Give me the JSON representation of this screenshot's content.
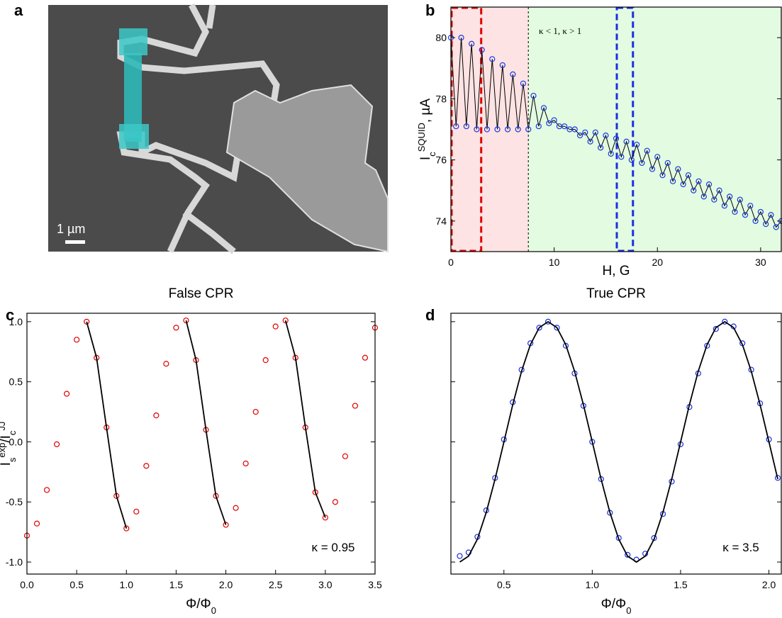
{
  "image": {
    "panel_label": "a",
    "scale_bar": "1 µm"
  },
  "chart_data": [
    {
      "type": "line",
      "panel_label": "b",
      "xlabel": [
        {
          "text": "H, G"
        }
      ],
      "ylabel": [
        {
          "text": "I"
        },
        {
          "text": "c",
          "shift": "sub"
        },
        {
          "text": "SQUID",
          "shift": "super"
        },
        {
          "text": ", µA"
        }
      ],
      "annotation": "κ < 1, κ > 1",
      "xlim": [
        0,
        32
      ],
      "ylim": [
        73,
        81
      ],
      "xticks": [
        0,
        10,
        20,
        30
      ],
      "yticks": [
        74,
        76,
        78,
        80
      ],
      "regions": [
        {
          "x": [
            0,
            7.5
          ],
          "color": "#fde3e3"
        },
        {
          "x": [
            7.5,
            32
          ],
          "color": "#e3fbe1"
        }
      ],
      "divider": 7.5,
      "highlights": [
        {
          "x": [
            0,
            3
          ],
          "color": "#e00000"
        },
        {
          "x": [
            16,
            17.7
          ],
          "color": "#1a2fe0"
        }
      ],
      "x": [
        0,
        0.5,
        1,
        1.5,
        2,
        2.5,
        3,
        3.5,
        4,
        4.5,
        5,
        5.5,
        6,
        6.5,
        7,
        7.5,
        8,
        8.5,
        9,
        9.5,
        10,
        10.5,
        11,
        11.5,
        12,
        12.5,
        13,
        13.5,
        14,
        14.5,
        15,
        15.5,
        16,
        16.5,
        17,
        17.5,
        18,
        18.5,
        19,
        19.5,
        20,
        20.5,
        21,
        21.5,
        22,
        22.5,
        23,
        23.5,
        24,
        24.5,
        25,
        25.5,
        26,
        26.5,
        27,
        27.5,
        28,
        28.5,
        29,
        29.5,
        30,
        30.5,
        31,
        31.5,
        32
      ],
      "series": [
        {
          "color": "#1a3be0",
          "marker": "circle",
          "line_color": "#000000",
          "values": [
            80.0,
            77.1,
            80.0,
            77.1,
            79.8,
            77.0,
            79.6,
            77.0,
            79.3,
            77.0,
            79.1,
            77.0,
            78.8,
            77.0,
            78.5,
            77.0,
            78.1,
            77.1,
            77.7,
            77.2,
            77.3,
            77.1,
            77.1,
            77.0,
            77.0,
            76.8,
            76.9,
            76.6,
            76.9,
            76.4,
            76.8,
            76.2,
            76.7,
            76.1,
            76.6,
            76.0,
            76.5,
            75.9,
            76.3,
            75.7,
            76.1,
            75.5,
            75.9,
            75.3,
            75.7,
            75.2,
            75.5,
            75.0,
            75.3,
            74.8,
            75.2,
            74.7,
            75.0,
            74.5,
            74.8,
            74.3,
            74.7,
            74.2,
            74.5,
            74.0,
            74.3,
            73.9,
            74.2,
            73.8,
            74.0
          ]
        }
      ]
    },
    {
      "type": "scatter",
      "panel_label": "c",
      "title": "False CPR",
      "xlabel": [
        {
          "text": "Φ/Φ"
        },
        {
          "text": "0",
          "shift": "sub"
        }
      ],
      "ylabel": [
        {
          "text": "I"
        },
        {
          "text": "s",
          "shift": "sub"
        },
        {
          "text": "exp",
          "shift": "super"
        },
        {
          "text": "/I"
        },
        {
          "text": "c",
          "shift": "sub"
        },
        {
          "text": "JJ",
          "shift": "super"
        }
      ],
      "annotation": "κ = 0.95",
      "xlim": [
        0,
        3.5
      ],
      "ylim": [
        -1.1,
        1.07
      ],
      "xticks": [
        {
          "value": 0,
          "label": "0.0"
        },
        0.5,
        {
          "value": 1,
          "label": "1.0"
        },
        1.5,
        {
          "value": 2,
          "label": "2.0"
        },
        2.5,
        {
          "value": 3,
          "label": "3.0"
        },
        3.5
      ],
      "yticks": [
        {
          "value": -1,
          "label": "-1.0"
        },
        -0.5,
        {
          "value": 0,
          "label": "0.0"
        },
        0.5,
        {
          "value": 1,
          "label": "1.0"
        }
      ],
      "x": [
        0,
        0.1,
        0.2,
        0.3,
        0.4,
        0.5,
        0.6,
        0.7,
        0.8,
        0.9,
        1.0,
        1.1,
        1.2,
        1.3,
        1.4,
        1.5,
        1.6,
        1.7,
        1.8,
        1.9,
        2.0,
        2.1,
        2.2,
        2.3,
        2.4,
        2.5,
        2.6,
        2.7,
        2.8,
        2.9,
        3.0,
        3.1,
        3.2,
        3.3,
        3.4,
        3.5
      ],
      "series": [
        {
          "color": "#e00000",
          "marker": "circle",
          "values": [
            -0.78,
            -0.68,
            -0.4,
            -0.02,
            0.4,
            0.85,
            1.0,
            0.7,
            0.12,
            -0.45,
            -0.72,
            -0.58,
            -0.2,
            0.22,
            0.65,
            0.95,
            1.01,
            0.68,
            0.1,
            -0.45,
            -0.69,
            -0.55,
            -0.18,
            0.25,
            0.68,
            0.96,
            1.01,
            0.7,
            0.12,
            -0.42,
            -0.63,
            -0.5,
            -0.12,
            0.3,
            0.7,
            0.95
          ]
        },
        {
          "color": "#000000",
          "marker": "line",
          "values": [
            null,
            null,
            null,
            null,
            null,
            null,
            1.0,
            0.7,
            0.12,
            -0.45,
            -0.72,
            null,
            null,
            null,
            null,
            null,
            1.01,
            0.68,
            0.1,
            -0.45,
            -0.69,
            null,
            null,
            null,
            null,
            null,
            1.01,
            0.7,
            0.12,
            -0.42,
            -0.63,
            null,
            null,
            null,
            null,
            null
          ]
        }
      ]
    },
    {
      "type": "scatter",
      "panel_label": "d",
      "title": "True CPR",
      "xlabel": [
        {
          "text": "Φ/Φ"
        },
        {
          "text": "0",
          "shift": "sub"
        }
      ],
      "annotation": "κ = 3.5",
      "xlim": [
        0.2,
        2.07
      ],
      "ylim": [
        -1.1,
        1.07
      ],
      "xticks": [
        0.5,
        {
          "value": 1,
          "label": "1.0"
        },
        1.5,
        {
          "value": 2,
          "label": "2.0"
        }
      ],
      "yticks": [
        -1,
        -0.5,
        0,
        0.5,
        1
      ],
      "ytick_labels": false,
      "x": [
        0.25,
        0.3,
        0.35,
        0.4,
        0.45,
        0.5,
        0.55,
        0.6,
        0.65,
        0.7,
        0.75,
        0.8,
        0.85,
        0.9,
        0.95,
        1.0,
        1.05,
        1.1,
        1.15,
        1.2,
        1.25,
        1.3,
        1.35,
        1.4,
        1.45,
        1.5,
        1.55,
        1.6,
        1.65,
        1.7,
        1.75,
        1.8,
        1.85,
        1.9,
        1.95,
        2.0,
        2.05
      ],
      "series": [
        {
          "color": "#1a2fe0",
          "marker": "circle",
          "values": [
            -0.95,
            -0.92,
            -0.79,
            -0.57,
            -0.3,
            0.02,
            0.33,
            0.6,
            0.82,
            0.95,
            1,
            0.95,
            0.8,
            0.57,
            0.3,
            0,
            -0.31,
            -0.59,
            -0.8,
            -0.94,
            -0.98,
            -0.93,
            -0.8,
            -0.6,
            -0.33,
            -0.02,
            0.29,
            0.57,
            0.8,
            0.94,
            1,
            0.96,
            0.82,
            0.6,
            0.32,
            0.02,
            -0.3
          ]
        },
        {
          "color": "#000000",
          "marker": "line",
          "values": [
            -1,
            -0.951,
            -0.809,
            -0.588,
            -0.309,
            0,
            0.309,
            0.588,
            0.809,
            0.951,
            1,
            0.951,
            0.809,
            0.588,
            0.309,
            0,
            -0.309,
            -0.588,
            -0.809,
            -0.951,
            -1,
            -0.951,
            -0.809,
            -0.588,
            -0.309,
            0,
            0.309,
            0.588,
            0.809,
            0.951,
            1,
            0.951,
            0.809,
            0.588,
            0.309,
            0,
            -0.309
          ]
        }
      ]
    }
  ]
}
